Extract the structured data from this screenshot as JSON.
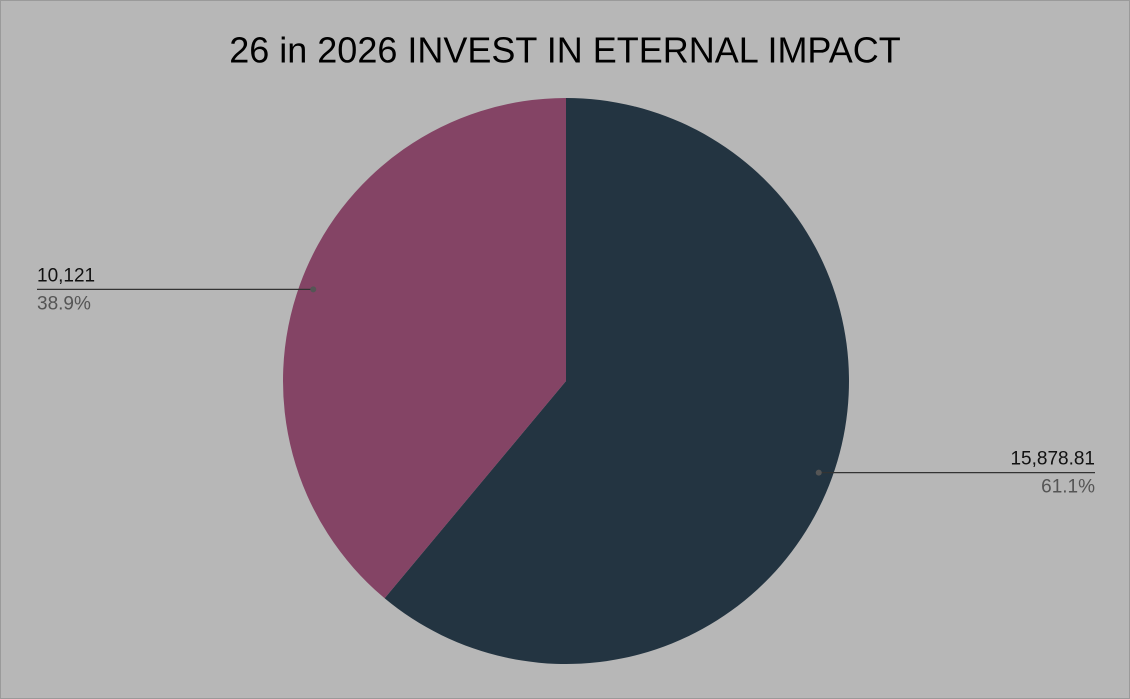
{
  "chart_data": {
    "type": "pie",
    "title": "26 in 2026 INVEST IN ETERNAL IMPACT",
    "values": [
      15878.81,
      10121
    ],
    "value_labels": [
      "15,878.81",
      "10,121"
    ],
    "percent_labels": [
      "61.1%",
      "38.9%"
    ],
    "colors": [
      "#233441",
      "#844465"
    ]
  }
}
